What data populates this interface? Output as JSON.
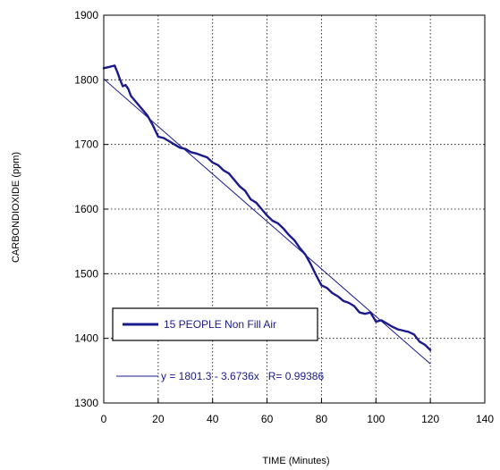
{
  "chart_data": {
    "type": "line",
    "title": "",
    "xlabel": "TIME (Minutes)",
    "ylabel": "CARBONDIOXIDE (ppm)",
    "xlim": [
      0,
      140
    ],
    "ylim": [
      1300,
      1900
    ],
    "xticks": [
      0,
      20,
      40,
      60,
      80,
      100,
      120,
      140
    ],
    "yticks": [
      1300,
      1400,
      1500,
      1600,
      1700,
      1800,
      1900
    ],
    "grid": true,
    "legend_position": "lower-left",
    "series": [
      {
        "name": "15 PEOPLE Non Fill Air",
        "color": "#1a1a8c",
        "x": [
          0,
          2,
          4,
          5,
          6,
          7,
          8,
          9,
          10,
          12,
          14,
          16,
          18,
          20,
          22,
          24,
          26,
          28,
          30,
          32,
          34,
          36,
          38,
          40,
          42,
          44,
          46,
          48,
          50,
          52,
          54,
          56,
          58,
          60,
          62,
          64,
          66,
          68,
          70,
          72,
          74,
          76,
          78,
          80,
          82,
          84,
          86,
          88,
          90,
          92,
          94,
          96,
          98,
          100,
          102,
          104,
          106,
          108,
          110,
          112,
          114,
          116,
          118,
          120
        ],
        "y": [
          1818,
          1820,
          1822,
          1812,
          1800,
          1790,
          1792,
          1786,
          1775,
          1765,
          1755,
          1745,
          1730,
          1712,
          1710,
          1705,
          1700,
          1695,
          1693,
          1688,
          1686,
          1683,
          1680,
          1672,
          1668,
          1660,
          1655,
          1645,
          1635,
          1628,
          1615,
          1610,
          1600,
          1590,
          1582,
          1578,
          1570,
          1560,
          1552,
          1540,
          1530,
          1515,
          1498,
          1482,
          1478,
          1470,
          1465,
          1458,
          1455,
          1450,
          1440,
          1438,
          1440,
          1426,
          1428,
          1423,
          1418,
          1414,
          1412,
          1410,
          1406,
          1395,
          1390,
          1382
        ]
      }
    ],
    "fit": {
      "intercept": 1801.3,
      "slope": -3.6736,
      "x_range": [
        0,
        120
      ],
      "color": "#1a1a8c",
      "label": "y = 1801.3 - 3.6736x   R= 0.99386"
    }
  }
}
